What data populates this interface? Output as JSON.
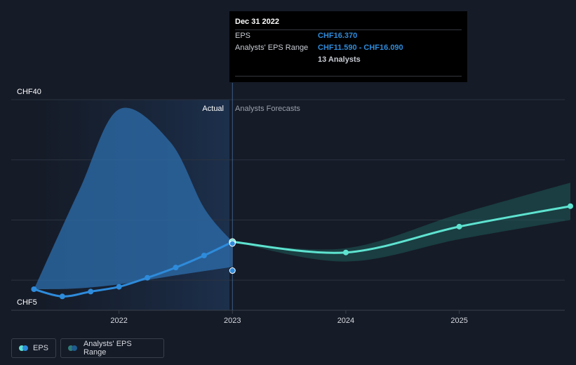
{
  "chart_data": {
    "type": "line",
    "y_axis": {
      "labels": [
        "CHF40",
        "CHF5"
      ],
      "ylim": [
        5,
        40
      ],
      "gridlines": [
        40,
        30,
        20,
        10
      ]
    },
    "x_axis": {
      "tick_labels": [
        "2022",
        "2023",
        "2024",
        "2025"
      ],
      "ticks": [
        2022,
        2023,
        2024,
        2025
      ],
      "xlim": [
        2021.0,
        2025.98
      ]
    },
    "region_labels": {
      "actual": "Actual",
      "forecast": "Analysts Forecasts"
    },
    "divider_x": 2023,
    "series": [
      {
        "name": "EPS",
        "color": "#2e8bdb",
        "points": [
          [
            2021.25,
            8.5
          ],
          [
            2021.5,
            7.3
          ],
          [
            2021.75,
            8.1
          ],
          [
            2022.0,
            8.9
          ],
          [
            2022.25,
            10.4
          ],
          [
            2022.5,
            12.1
          ],
          [
            2022.75,
            14.1
          ],
          [
            2023.0,
            16.37
          ]
        ]
      },
      {
        "name": "EPS",
        "color": "#5ee3d0",
        "points": [
          [
            2023.0,
            16.37
          ],
          [
            2024.0,
            14.6
          ],
          [
            2025.0,
            18.9
          ],
          [
            2025.98,
            22.3
          ]
        ]
      }
    ],
    "ranges": [
      {
        "name": "Analysts' EPS Range",
        "color": "#2e6fae",
        "upper": [
          [
            2021.25,
            8.5
          ],
          [
            2021.65,
            25.0
          ],
          [
            2022.0,
            38.4
          ],
          [
            2022.45,
            33.0
          ],
          [
            2022.75,
            22.0
          ],
          [
            2023.0,
            16.37
          ]
        ],
        "lower": [
          [
            2021.25,
            8.5
          ],
          [
            2021.6,
            8.6
          ],
          [
            2022.0,
            9.3
          ],
          [
            2022.5,
            10.8
          ],
          [
            2023.0,
            12.2
          ]
        ]
      },
      {
        "name": "Analysts' EPS Range",
        "color": "#1f5b5a",
        "upper": [
          [
            2023.0,
            16.37
          ],
          [
            2024.0,
            15.3
          ],
          [
            2025.0,
            21.0
          ],
          [
            2025.98,
            26.2
          ]
        ],
        "lower": [
          [
            2023.0,
            16.37
          ],
          [
            2024.0,
            13.1
          ],
          [
            2025.0,
            16.8
          ],
          [
            2025.98,
            20.0
          ]
        ]
      }
    ],
    "extra_markers": [
      [
        2023.0,
        16.09
      ],
      [
        2023.0,
        11.59
      ]
    ]
  },
  "tooltip": {
    "date": "Dec 31 2022",
    "rows": [
      {
        "key": "EPS",
        "value": "CHF16.370"
      },
      {
        "key": "Analysts' EPS Range",
        "value": "CHF11.590 - CHF16.090"
      },
      {
        "key": "",
        "value": "13 Analysts"
      }
    ]
  },
  "legend": {
    "eps_label": "EPS",
    "range_label": "Analysts' EPS Range",
    "eps_colors": [
      "#5ee3d0",
      "#2e8bdb"
    ],
    "range_colors": [
      "#2f7c79",
      "#1f5b8e"
    ]
  }
}
